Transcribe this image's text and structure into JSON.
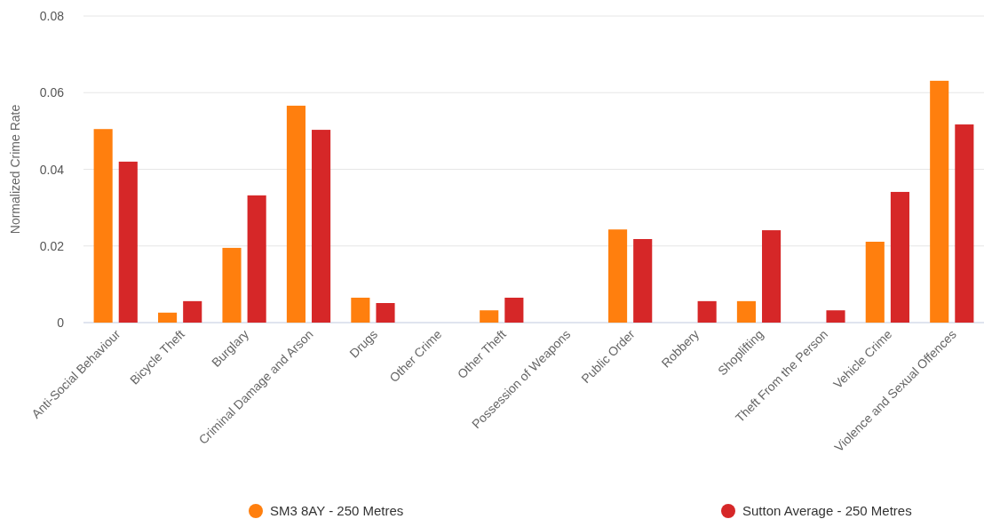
{
  "chart_data": {
    "type": "bar",
    "ylabel": "Normalized Crime Rate",
    "categories": [
      "Anti-Social Behaviour",
      "Bicycle Theft",
      "Burglary",
      "Criminal Damage and Arson",
      "Drugs",
      "Other Crime",
      "Other Theft",
      "Possession of Weapons",
      "Public Order",
      "Robbery",
      "Shoplifting",
      "Theft From the Person",
      "Vehicle Crime",
      "Violence and Sexual Offences"
    ],
    "series": [
      {
        "name": "SM3 8AY - 250 Metres",
        "color": "#ff7f0e",
        "values": [
          0.0505,
          0.0026,
          0.0195,
          0.0566,
          0.0065,
          0,
          0.0032,
          0,
          0.0243,
          0,
          0.0056,
          0,
          0.0211,
          0.0631
        ]
      },
      {
        "name": "Sutton Average - 250 Metres",
        "color": "#d62728",
        "values": [
          0.042,
          0.0056,
          0.0332,
          0.0503,
          0.0051,
          0,
          0.0065,
          0,
          0.0218,
          0.0056,
          0.0241,
          0.0032,
          0.0341,
          0.0517
        ]
      }
    ],
    "ylim": [
      0,
      0.08
    ],
    "yticks": [
      {
        "value": 0,
        "label": "0"
      },
      0.02,
      0.04,
      0.06,
      0.08
    ],
    "grid": "y",
    "legend": "bottom"
  }
}
